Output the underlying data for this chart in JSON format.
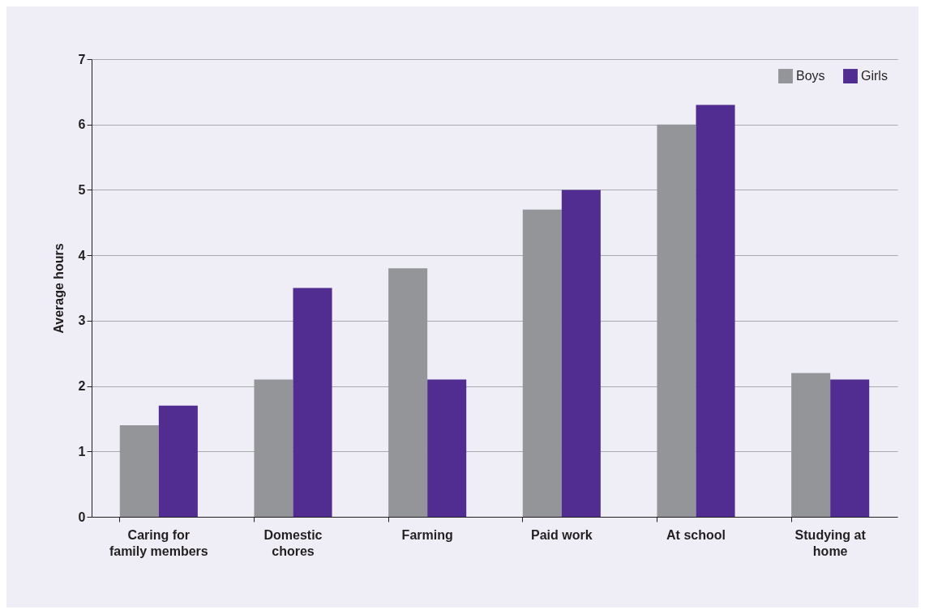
{
  "chart_data": {
    "type": "bar",
    "ylabel": "Average hours",
    "categories": [
      "Caring for family members",
      "Domestic chores",
      "Farming",
      "Paid work",
      "At school",
      "Studying at home"
    ],
    "series": [
      {
        "name": "Boys",
        "color": "#939598",
        "values": [
          1.4,
          2.1,
          3.8,
          4.7,
          6.0,
          2.2
        ]
      },
      {
        "name": "Girls",
        "color": "#522d91",
        "values": [
          1.7,
          3.5,
          2.1,
          5.0,
          6.3,
          2.1
        ]
      }
    ],
    "ylim": [
      0,
      7
    ],
    "yticks": [
      0,
      1,
      2,
      3,
      4,
      5,
      6,
      7
    ],
    "grid": "y",
    "legend": "top right"
  }
}
